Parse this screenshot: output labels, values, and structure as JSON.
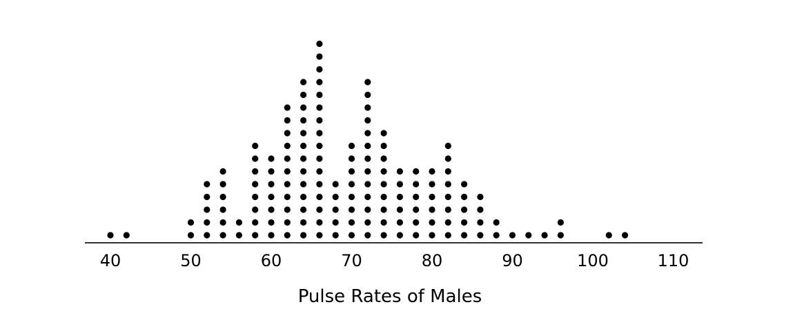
{
  "chart_data": {
    "type": "dot plot",
    "xlabel": "Pulse Rates of Males",
    "xlim": [
      40,
      110
    ],
    "xticks": [
      "40",
      "50",
      "60",
      "70",
      "80",
      "90",
      "100",
      "110"
    ],
    "grid": false,
    "legend": "none",
    "dot_color": "#000000",
    "points": [
      {
        "x": 40,
        "count": 1
      },
      {
        "x": 42,
        "count": 1
      },
      {
        "x": 50,
        "count": 2
      },
      {
        "x": 52,
        "count": 5
      },
      {
        "x": 54,
        "count": 6
      },
      {
        "x": 56,
        "count": 2
      },
      {
        "x": 58,
        "count": 8
      },
      {
        "x": 60,
        "count": 7
      },
      {
        "x": 62,
        "count": 11
      },
      {
        "x": 64,
        "count": 13
      },
      {
        "x": 66,
        "count": 16
      },
      {
        "x": 68,
        "count": 5
      },
      {
        "x": 70,
        "count": 8
      },
      {
        "x": 72,
        "count": 13
      },
      {
        "x": 74,
        "count": 9
      },
      {
        "x": 76,
        "count": 6
      },
      {
        "x": 78,
        "count": 6
      },
      {
        "x": 80,
        "count": 6
      },
      {
        "x": 82,
        "count": 8
      },
      {
        "x": 84,
        "count": 5
      },
      {
        "x": 86,
        "count": 4
      },
      {
        "x": 88,
        "count": 2
      },
      {
        "x": 90,
        "count": 1
      },
      {
        "x": 92,
        "count": 1
      },
      {
        "x": 94,
        "count": 1
      },
      {
        "x": 96,
        "count": 2
      },
      {
        "x": 102,
        "count": 1
      },
      {
        "x": 104,
        "count": 1
      }
    ]
  }
}
